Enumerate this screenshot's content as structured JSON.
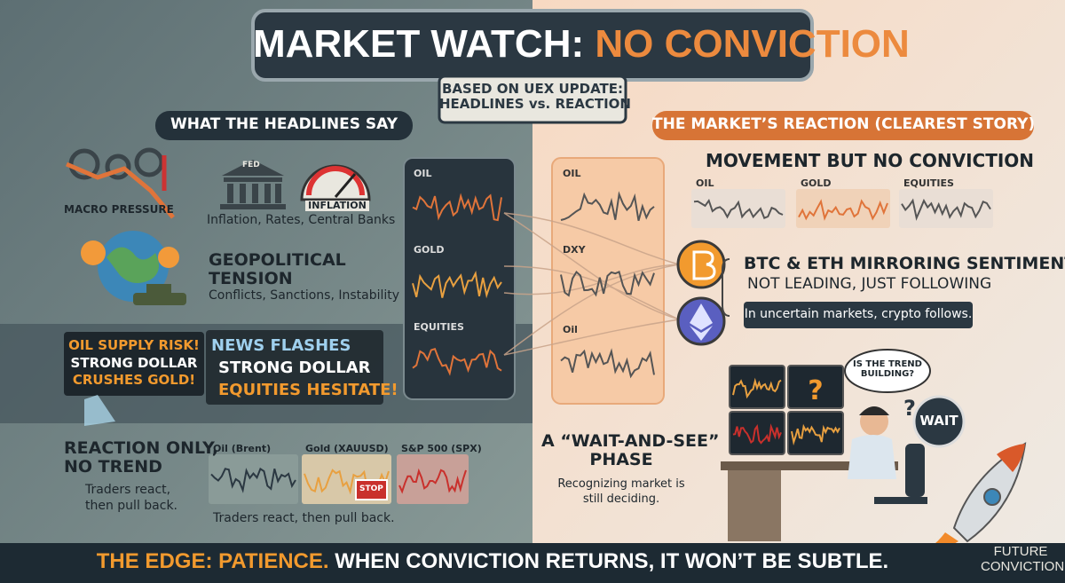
{
  "header": {
    "title_lead": "MARKET WATCH:",
    "title_accent": "NO CONVICTION",
    "subtitle": [
      "BASED ON UEX UPDATE:",
      "HEADLINES vs. REACTION"
    ]
  },
  "headlines": {
    "heading": "WHAT THE HEADLINES SAY",
    "macro": {
      "label": "MACRO PRESSURE",
      "fed": "FED",
      "inflation": "INFLATION",
      "caption": "Inflation, Rates, Central Banks"
    },
    "geopolitical": {
      "title": [
        "GEOPOLITICAL",
        "TENSION"
      ],
      "caption": "Conflicts, Sanctions, Instability"
    },
    "news": {
      "alerts": [
        "OIL SUPPLY RISK!",
        "STRONG DOLLAR",
        "CRUSHES GOLD!"
      ],
      "flashes": [
        "NEWS FLASHES",
        "STRONG DOLLAR",
        "EQUITIES HESITATE!"
      ]
    },
    "panel": [
      "OIL",
      "GOLD",
      "EQUITIES"
    ],
    "reaction": {
      "title": [
        "REACTION ONLY,",
        "NO TREND"
      ],
      "note": [
        "Traders react,",
        "then pull back."
      ],
      "charts": [
        "Oil (Brent)",
        "Gold (XAUUSD)",
        "S&P 500 (SPX)"
      ],
      "stop": "STOP",
      "caption": "Traders react, then pull back."
    }
  },
  "market": {
    "heading": "THE MARKET’S REACTION (CLEAREST STORY)",
    "panel": [
      "OIL",
      "DXY",
      "Oil"
    ],
    "movement": {
      "title": "MOVEMENT BUT NO CONVICTION",
      "charts": [
        "OIL",
        "GOLD",
        "EQUITIES"
      ]
    },
    "crypto": {
      "title": "BTC & ETH MIRRORING SENTIMENT",
      "subtitle": "NOT LEADING, JUST FOLLOWING",
      "note": "In uncertain markets, crypto follows."
    },
    "wait": {
      "title": [
        "A “WAIT-AND-SEE”",
        "PHASE"
      ],
      "note": [
        "Recognizing market is",
        "still deciding."
      ],
      "bubble": [
        "IS THE TREND",
        "BUILDING?"
      ],
      "badge": "WAIT"
    }
  },
  "footer": {
    "lead": "THE EDGE: PATIENCE.",
    "rest": "WHEN CONVICTION RETURNS, IT WON’T BE SUBTLE.",
    "brand": [
      "FUTURE",
      "CONVICTION"
    ]
  }
}
